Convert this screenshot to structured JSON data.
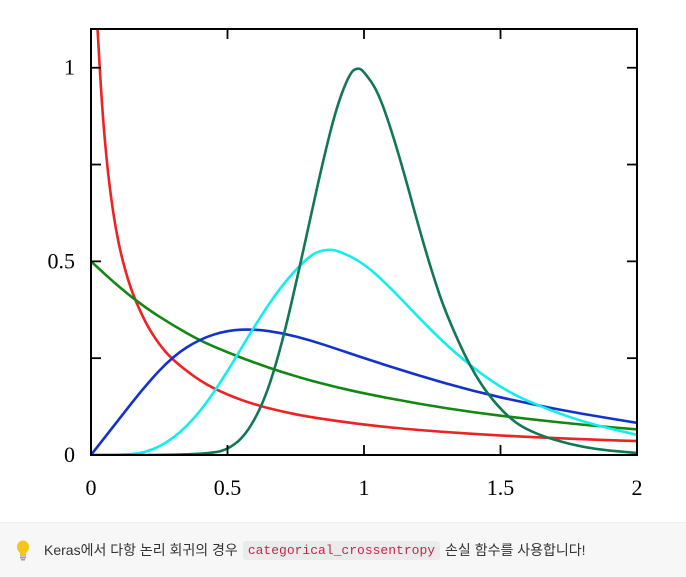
{
  "chart_data": {
    "type": "line",
    "xlim": [
      0,
      2
    ],
    "ylim": [
      0,
      1.1
    ],
    "x_ticks": [
      0,
      0.5,
      1,
      1.5,
      2
    ],
    "x_tick_labels": [
      "0",
      "0.5",
      "1",
      "1.5",
      "2"
    ],
    "y_ticks": [
      0,
      0.5,
      1
    ],
    "y_tick_labels": [
      "0",
      "0.5",
      "1"
    ],
    "y_minor_ticks": [
      0.25,
      0.75
    ],
    "grid": false,
    "title": "",
    "xlabel": "",
    "ylabel": "",
    "series": [
      {
        "color": "#ee2222",
        "x": [
          0.02,
          0.04,
          0.06,
          0.08,
          0.1,
          0.12,
          0.15,
          0.2,
          0.25,
          0.3,
          0.4,
          0.5,
          0.6,
          0.7,
          0.8,
          1.0,
          1.2,
          1.5,
          1.75,
          2.0
        ],
        "y": [
          1.15,
          0.9,
          0.74,
          0.63,
          0.55,
          0.49,
          0.42,
          0.34,
          0.285,
          0.245,
          0.19,
          0.155,
          0.13,
          0.112,
          0.098,
          0.078,
          0.064,
          0.05,
          0.042,
          0.036
        ]
      },
      {
        "color": "#118811",
        "x": [
          0,
          0.1,
          0.2,
          0.3,
          0.4,
          0.5,
          0.6,
          0.7,
          0.8,
          0.9,
          1.0,
          1.2,
          1.4,
          1.6,
          1.8,
          2.0
        ],
        "y": [
          0.5,
          0.435,
          0.38,
          0.335,
          0.295,
          0.265,
          0.238,
          0.214,
          0.193,
          0.175,
          0.159,
          0.132,
          0.11,
          0.093,
          0.078,
          0.066
        ]
      },
      {
        "color": "#1133cc",
        "x": [
          0,
          0.1,
          0.2,
          0.3,
          0.4,
          0.5,
          0.6,
          0.7,
          0.8,
          0.9,
          1.0,
          1.2,
          1.4,
          1.6,
          1.8,
          2.0
        ],
        "y": [
          0,
          0.09,
          0.18,
          0.255,
          0.3,
          0.322,
          0.325,
          0.315,
          0.297,
          0.274,
          0.25,
          0.205,
          0.165,
          0.133,
          0.106,
          0.083
        ]
      },
      {
        "color": "#11eeee",
        "x": [
          0,
          0.1,
          0.2,
          0.3,
          0.4,
          0.5,
          0.6,
          0.7,
          0.8,
          0.85,
          0.9,
          1.0,
          1.1,
          1.2,
          1.3,
          1.4,
          1.5,
          1.6,
          1.8,
          2.0
        ],
        "y": [
          0,
          0.0,
          0.005,
          0.04,
          0.11,
          0.215,
          0.335,
          0.44,
          0.515,
          0.53,
          0.53,
          0.495,
          0.43,
          0.355,
          0.285,
          0.225,
          0.175,
          0.138,
          0.085,
          0.052
        ]
      },
      {
        "color": "#117755",
        "x": [
          0,
          0.3,
          0.45,
          0.5,
          0.55,
          0.6,
          0.65,
          0.7,
          0.75,
          0.8,
          0.85,
          0.9,
          0.95,
          0.98,
          1.0,
          1.05,
          1.1,
          1.15,
          1.2,
          1.25,
          1.3,
          1.4,
          1.5,
          1.6,
          1.8,
          2.0
        ],
        "y": [
          0,
          0,
          0.005,
          0.015,
          0.04,
          0.09,
          0.17,
          0.29,
          0.44,
          0.6,
          0.76,
          0.9,
          0.99,
          1.0,
          0.99,
          0.94,
          0.84,
          0.72,
          0.59,
          0.47,
          0.365,
          0.21,
          0.115,
          0.06,
          0.018,
          0.005
        ]
      }
    ]
  },
  "tip": {
    "icon": "lightbulb-icon",
    "text_before": "Keras에서 다항 논리 회귀의 경우",
    "code": "categorical_crossentropy",
    "text_after": "손실 함수를 사용합니다!"
  }
}
